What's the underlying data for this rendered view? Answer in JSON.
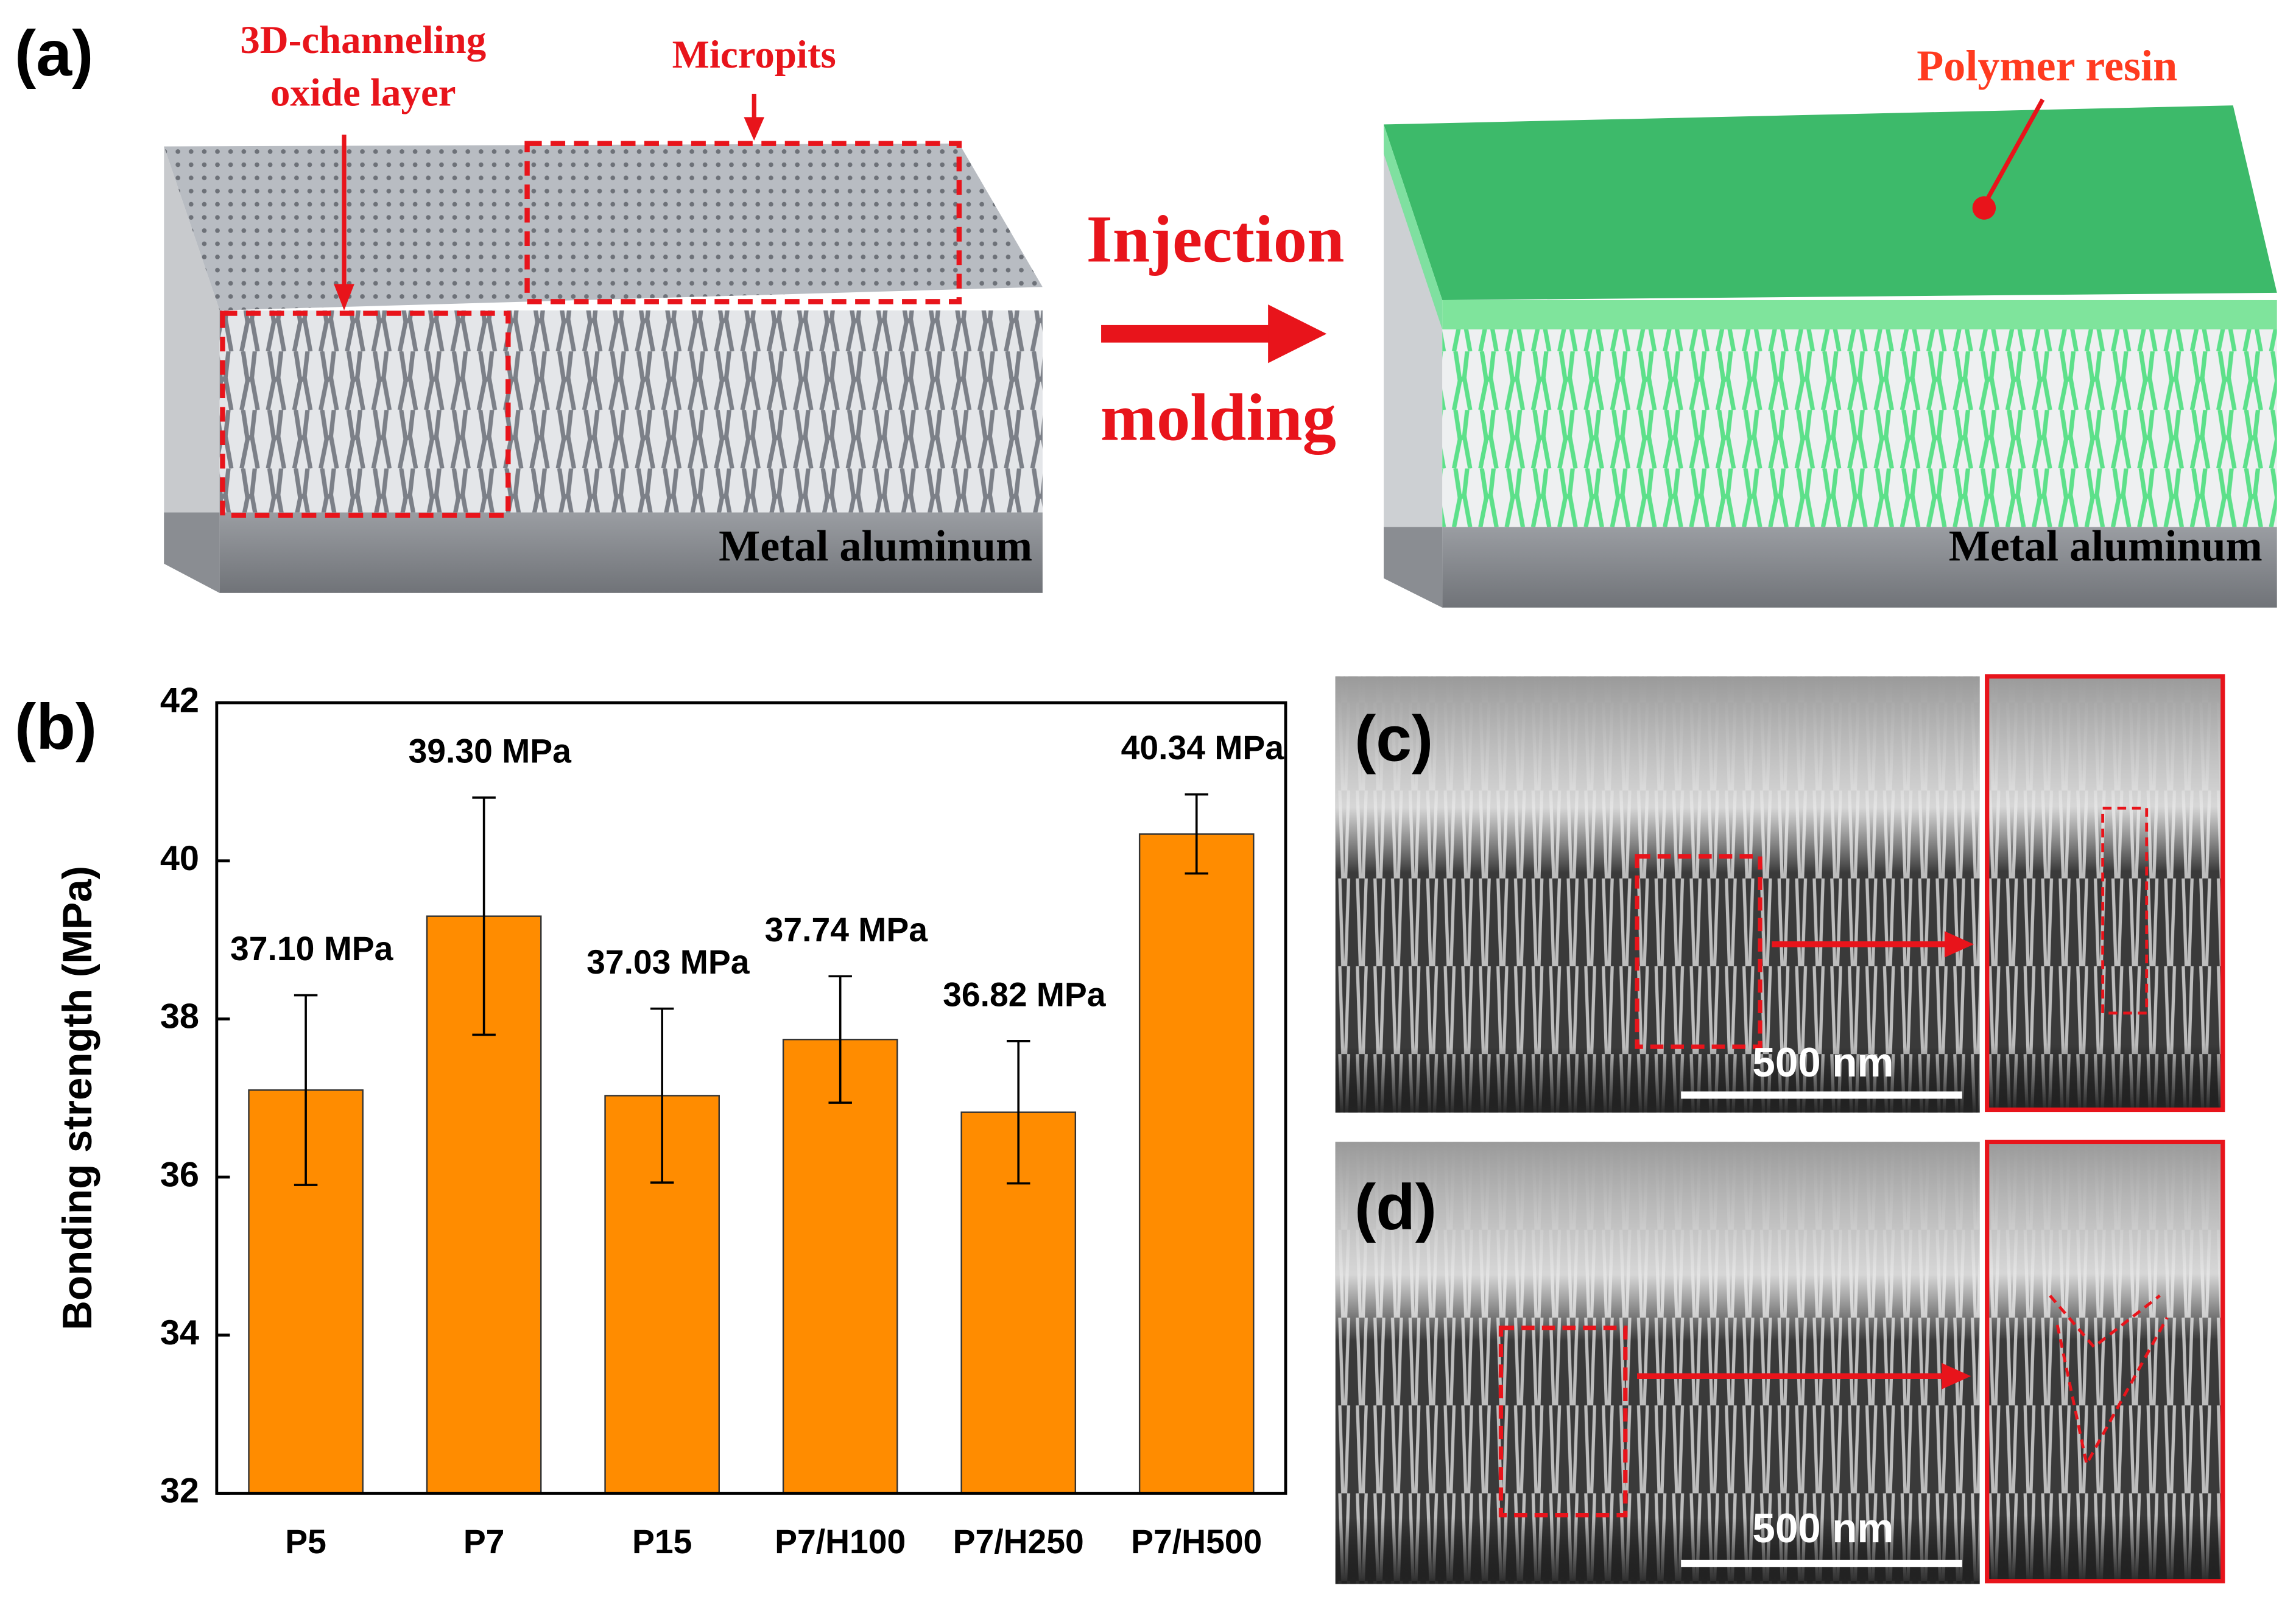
{
  "panel_a": {
    "label": "(a)",
    "oxide_label": [
      "3D-channeling",
      "oxide layer"
    ],
    "micropits_label": "Micropits",
    "process_label": [
      "Injection",
      "molding"
    ],
    "resin_label": "Polymer resin",
    "metal_label_left": "Metal aluminum",
    "metal_label_right": "Metal aluminum"
  },
  "chart_data": {
    "type": "bar",
    "label": "(b)",
    "ylabel": "Bonding strength (MPa)",
    "categories": [
      "P5",
      "P7",
      "P15",
      "P7/H100",
      "P7/H250",
      "P7/H500"
    ],
    "values": [
      37.1,
      39.3,
      37.03,
      37.74,
      36.82,
      40.34
    ],
    "value_labels": [
      "37.10 MPa",
      "39.30 MPa",
      "37.03 MPa",
      "37.74 MPa",
      "36.82 MPa",
      "40.34 MPa"
    ],
    "errors": [
      1.2,
      1.5,
      1.1,
      0.8,
      0.9,
      0.5
    ],
    "color": "#ff8c00",
    "ylim": [
      32,
      42
    ],
    "yticks": [
      32,
      34,
      36,
      38,
      40,
      42
    ]
  },
  "panel_c": {
    "label": "(c)",
    "scale_bar": "500 nm"
  },
  "panel_d": {
    "label": "(d)",
    "scale_bar": "500 nm"
  }
}
